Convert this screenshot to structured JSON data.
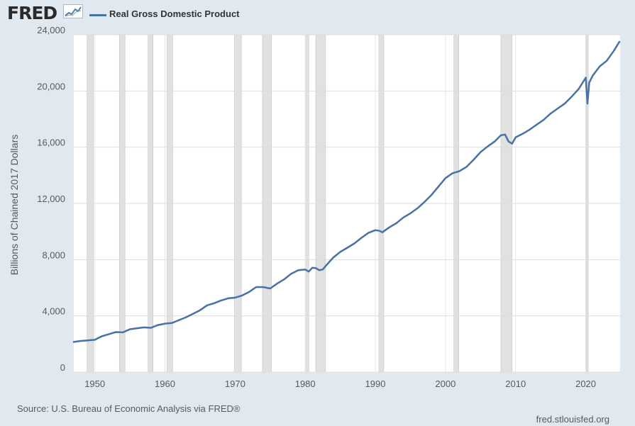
{
  "logo": {
    "text": "FRED"
  },
  "chart_data": {
    "type": "line",
    "title": "",
    "xlabel": "",
    "ylabel": "Billions of Chained 2017 Dollars",
    "xlim": [
      1947,
      2024.9
    ],
    "ylim": [
      0,
      24000
    ],
    "yticks": [
      0,
      4000,
      8000,
      12000,
      16000,
      20000,
      24000
    ],
    "ytick_labels": [
      "0",
      "4,000",
      "8,000",
      "12,000",
      "16,000",
      "20,000",
      "24,000"
    ],
    "xticks": [
      1950,
      1960,
      1970,
      1980,
      1990,
      2000,
      2010,
      2020
    ],
    "xtick_labels": [
      "1950",
      "1960",
      "1970",
      "1980",
      "1990",
      "2000",
      "2010",
      "2020"
    ],
    "grid": true,
    "legend_position": "top-left",
    "line_color": "#4572a7",
    "recession_color": "#e1e1e1",
    "recessions": [
      [
        1948.9,
        1949.8
      ],
      [
        1953.5,
        1954.3
      ],
      [
        1957.6,
        1958.3
      ],
      [
        1960.3,
        1961.1
      ],
      [
        1969.9,
        1970.9
      ],
      [
        1973.9,
        1975.2
      ],
      [
        1980.0,
        1980.5
      ],
      [
        1981.5,
        1982.9
      ],
      [
        1990.5,
        1991.2
      ],
      [
        2001.2,
        2001.9
      ],
      [
        2007.9,
        2009.5
      ],
      [
        2020.1,
        2020.3
      ]
    ],
    "series": [
      {
        "name": "Real Gross Domestic Product",
        "x": [
          1947,
          1948,
          1949,
          1950,
          1951,
          1952,
          1953,
          1954,
          1955,
          1956,
          1957,
          1958,
          1959,
          1960,
          1961,
          1962,
          1963,
          1964,
          1965,
          1966,
          1967,
          1968,
          1969,
          1970,
          1971,
          1972,
          1973,
          1974,
          1975,
          1976,
          1977,
          1978,
          1979,
          1980,
          1980.5,
          1981,
          1981.5,
          1982,
          1982.5,
          1983,
          1984,
          1985,
          1986,
          1987,
          1988,
          1989,
          1990,
          1990.6,
          1991,
          1992,
          1993,
          1994,
          1995,
          1996,
          1997,
          1998,
          1999,
          2000,
          2001,
          2002,
          2003,
          2004,
          2005,
          2006,
          2007,
          2007.9,
          2008.5,
          2009,
          2009.5,
          2010,
          2011,
          2012,
          2013,
          2014,
          2015,
          2016,
          2017,
          2018,
          2019,
          2020,
          2020.25,
          2020.5,
          2021,
          2022,
          2023,
          2024,
          2024.8
        ],
        "values": [
          2150,
          2220,
          2260,
          2300,
          2550,
          2700,
          2850,
          2830,
          3050,
          3120,
          3180,
          3150,
          3350,
          3450,
          3500,
          3700,
          3900,
          4150,
          4400,
          4750,
          4900,
          5100,
          5250,
          5300,
          5450,
          5700,
          6050,
          6050,
          5950,
          6300,
          6600,
          7000,
          7250,
          7300,
          7150,
          7420,
          7400,
          7250,
          7300,
          7600,
          8150,
          8550,
          8850,
          9150,
          9550,
          9900,
          10100,
          10050,
          9950,
          10300,
          10600,
          11000,
          11300,
          11650,
          12100,
          12600,
          13200,
          13800,
          14150,
          14300,
          14600,
          15100,
          15650,
          16050,
          16400,
          16850,
          16900,
          16400,
          16250,
          16700,
          16950,
          17250,
          17600,
          17950,
          18400,
          18750,
          19100,
          19600,
          20150,
          20950,
          19100,
          20600,
          21100,
          21750,
          22150,
          22850,
          23500
        ]
      }
    ]
  },
  "footer": {
    "source": "Source: U.S. Bureau of Economic Analysis via FRED®",
    "site": "fred.stlouisfed.org"
  }
}
